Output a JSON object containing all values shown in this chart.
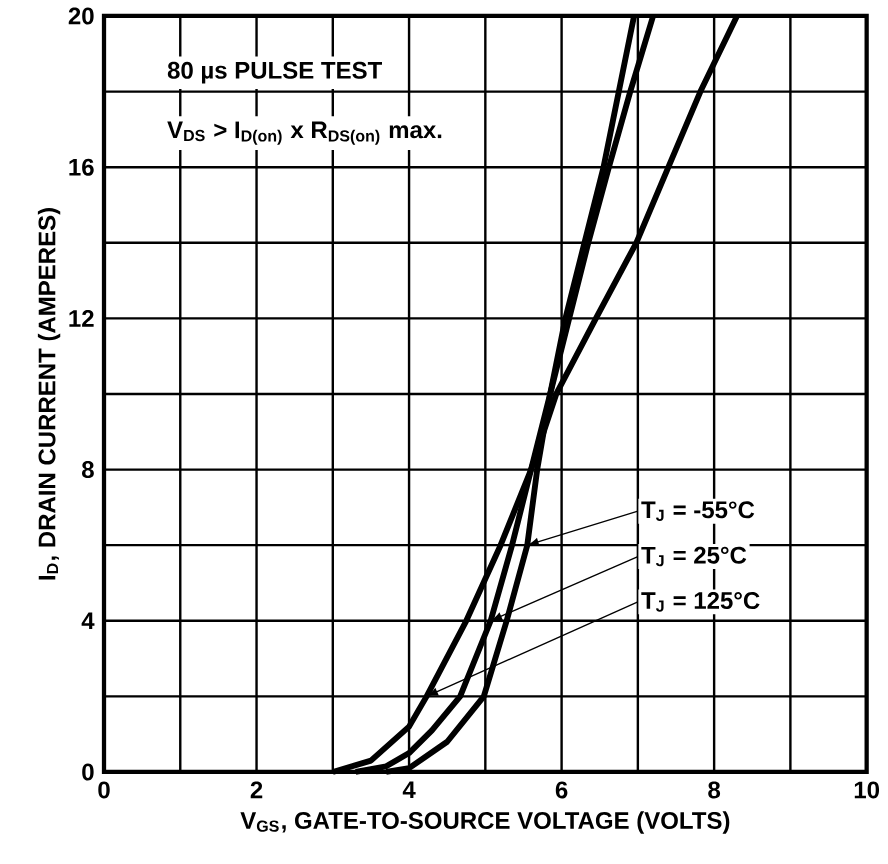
{
  "chart_data": {
    "type": "line",
    "xlabel": "V$_{GS}$, GATE-TO-SOURCE VOLTAGE (VOLTS)",
    "ylabel": "I$_{D}$, DRAIN CURRENT (AMPERES)",
    "annotations": [
      "80 µs PULSE TEST",
      "V$_{DS}$ > I$_{D(on)}$ x R$_{DS(on)}$ max.",
      {
        "text": "T$_{J}$ = -55°C",
        "x": 5.55,
        "y": 6
      },
      {
        "text": "T$_{J}$ = 25°C",
        "x": 5.07,
        "y": 4
      },
      {
        "text": "T$_{J}$ = 125°C",
        "x": 4.23,
        "y": 2
      }
    ],
    "xlim": [
      0,
      10
    ],
    "ylim": [
      0,
      20
    ],
    "xticks": [
      0,
      {
        "value": 1,
        "label": null
      },
      2,
      {
        "value": 3,
        "label": null
      },
      4,
      {
        "value": 5,
        "label": null
      },
      6,
      {
        "value": 7,
        "label": null
      },
      8,
      {
        "value": 9,
        "label": null
      },
      10
    ],
    "yticks": [
      0,
      {
        "value": 2,
        "label": null
      },
      4,
      {
        "value": 6,
        "label": null
      },
      8,
      {
        "value": 10,
        "label": null
      },
      12,
      {
        "value": 14,
        "label": null
      },
      16,
      {
        "value": 18,
        "label": null
      },
      20
    ],
    "grid": true,
    "marker": "none",
    "line_style": "solid",
    "series": [
      {
        "color": "#000000",
        "x": [
          3.7,
          4.0,
          4.5,
          4.98,
          5.28,
          5.55,
          5.68,
          5.85,
          6.05,
          6.3,
          6.55,
          6.75,
          6.95
        ],
        "values": [
          0,
          0.1,
          0.8,
          2,
          4,
          6,
          8,
          10,
          12,
          14,
          16,
          18,
          20
        ]
      },
      {
        "color": "#000000",
        "x": [
          3.3,
          3.7,
          4.0,
          4.3,
          4.67,
          5.07,
          5.35,
          5.6,
          5.85,
          6.1,
          6.35,
          6.62,
          6.9,
          7.2
        ],
        "values": [
          0,
          0.15,
          0.5,
          1.1,
          2,
          4,
          6,
          8,
          10,
          12,
          14,
          16,
          18,
          20
        ]
      },
      {
        "color": "#000000",
        "x": [
          3.0,
          3.5,
          4.0,
          4.23,
          4.75,
          5.2,
          5.6,
          5.93,
          6.45,
          6.98,
          7.4,
          7.82,
          8.3
        ],
        "values": [
          0,
          0.3,
          1.2,
          2,
          4,
          6,
          8,
          10,
          12,
          14,
          16,
          18,
          20
        ]
      }
    ]
  }
}
